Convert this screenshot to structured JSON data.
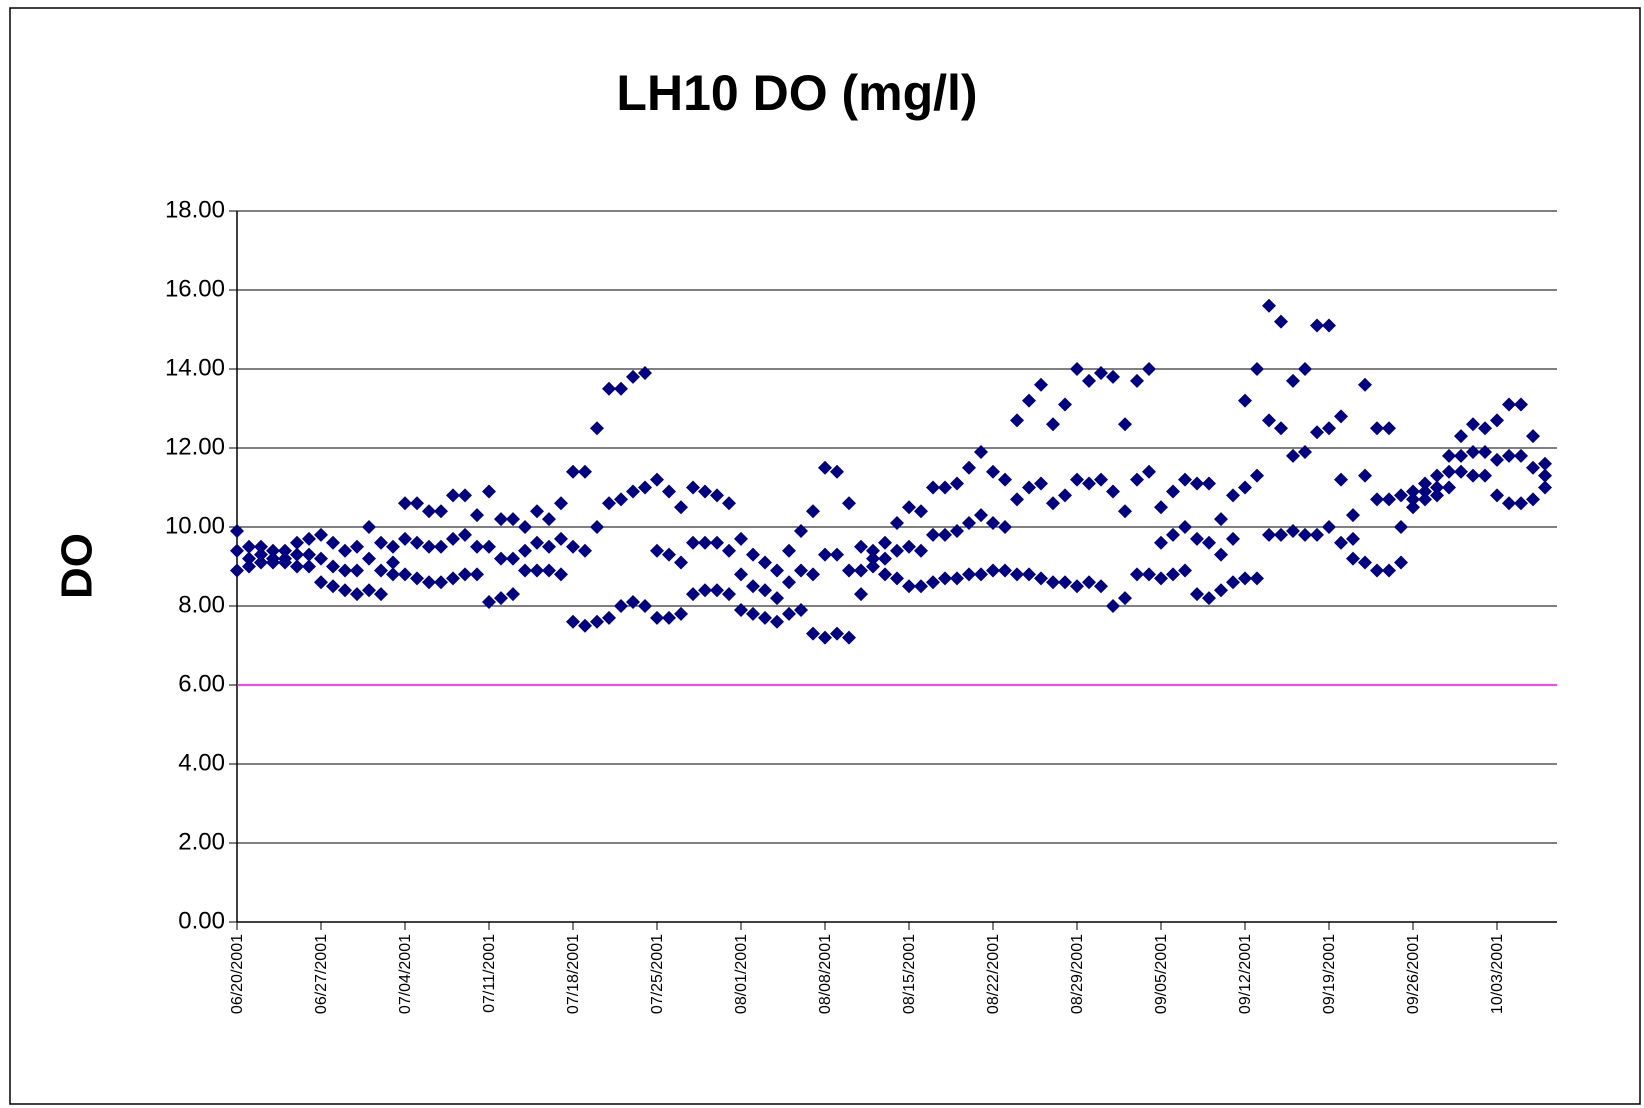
{
  "chart_data": {
    "type": "scatter",
    "title": "LH10 DO (mg/l)",
    "y_label": "DO",
    "x": [
      "06/20/2001",
      "06/21/2001",
      "06/22/2001",
      "06/23/2001",
      "06/24/2001",
      "06/25/2001",
      "06/26/2001",
      "06/27/2001",
      "06/28/2001",
      "06/29/2001",
      "06/30/2001",
      "07/01/2001",
      "07/02/2001",
      "07/03/2001",
      "07/04/2001",
      "07/05/2001",
      "07/06/2001",
      "07/07/2001",
      "07/08/2001",
      "07/09/2001",
      "07/10/2001",
      "07/11/2001",
      "07/12/2001",
      "07/13/2001",
      "07/14/2001",
      "07/15/2001",
      "07/16/2001",
      "07/17/2001",
      "07/18/2001",
      "07/19/2001",
      "07/20/2001",
      "07/21/2001",
      "07/22/2001",
      "07/23/2001",
      "07/24/2001",
      "07/25/2001",
      "07/26/2001",
      "07/27/2001",
      "07/28/2001",
      "07/29/2001",
      "07/30/2001",
      "07/31/2001",
      "08/01/2001",
      "08/02/2001",
      "08/03/2001",
      "08/04/2001",
      "08/05/2001",
      "08/06/2001",
      "08/07/2001",
      "08/08/2001",
      "08/09/2001",
      "08/10/2001",
      "08/11/2001",
      "08/12/2001",
      "08/13/2001",
      "08/14/2001",
      "08/15/2001",
      "08/16/2001",
      "08/17/2001",
      "08/18/2001",
      "08/19/2001",
      "08/20/2001",
      "08/21/2001",
      "08/22/2001",
      "08/23/2001",
      "08/24/2001",
      "08/25/2001",
      "08/26/2001",
      "08/27/2001",
      "08/28/2001",
      "08/29/2001",
      "08/30/2001",
      "08/31/2001",
      "09/01/2001",
      "09/02/2001",
      "09/03/2001",
      "09/04/2001",
      "09/05/2001",
      "09/06/2001",
      "09/07/2001",
      "09/08/2001",
      "09/09/2001",
      "09/10/2001",
      "09/11/2001",
      "09/12/2001",
      "09/13/2001",
      "09/14/2001",
      "09/15/2001",
      "09/16/2001",
      "09/17/2001",
      "09/18/2001",
      "09/19/2001",
      "09/20/2001",
      "09/21/2001",
      "09/22/2001",
      "09/23/2001",
      "09/24/2001",
      "09/25/2001",
      "09/26/2001",
      "09/27/2001",
      "09/28/2001",
      "09/29/2001",
      "09/30/2001",
      "10/01/2001",
      "10/02/2001",
      "10/03/2001",
      "10/04/2001",
      "10/05/2001",
      "10/06/2001",
      "10/07/2001"
    ],
    "series": [
      {
        "color": "#000080",
        "values": [
          8.9,
          9.0,
          9.1,
          9.1,
          9.1,
          9.0,
          9.0,
          8.6,
          8.5,
          8.4,
          8.3,
          8.4,
          8.3,
          8.8,
          8.8,
          8.7,
          8.6,
          8.6,
          8.7,
          8.8,
          8.8,
          8.1,
          8.2,
          8.3,
          8.9,
          8.9,
          8.9,
          8.8,
          7.6,
          7.5,
          7.6,
          7.7,
          8.0,
          8.1,
          8.0,
          7.7,
          7.7,
          7.8,
          8.3,
          8.4,
          8.4,
          8.3,
          7.9,
          7.8,
          7.7,
          7.6,
          7.8,
          7.9,
          7.3,
          7.2,
          7.3,
          7.2,
          8.3,
          9.0,
          8.8,
          8.7,
          8.5,
          8.5,
          8.6,
          8.7,
          8.7,
          8.8,
          8.8,
          8.9,
          8.9,
          8.8,
          8.8,
          8.7,
          8.6,
          8.6,
          8.5,
          8.6,
          8.5,
          8.0,
          8.2,
          8.8,
          8.8,
          8.7,
          8.8,
          8.9,
          8.3,
          8.2,
          8.4,
          8.6,
          8.7,
          8.7,
          9.8,
          9.8,
          9.9,
          9.8,
          9.8,
          10.0,
          9.6,
          9.2,
          9.1,
          8.9,
          8.9,
          9.1,
          10.5,
          10.7,
          10.8,
          11.0,
          11.4,
          11.3,
          11.3,
          10.8,
          10.6,
          10.6,
          10.7,
          11.0
        ]
      },
      {
        "color": "#000080",
        "values": [
          9.4,
          9.2,
          9.3,
          9.2,
          9.2,
          9.3,
          9.3,
          9.2,
          9.0,
          8.9,
          8.9,
          9.2,
          8.9,
          9.1,
          9.7,
          9.6,
          9.5,
          9.5,
          9.7,
          9.8,
          9.5,
          9.5,
          9.2,
          9.2,
          9.4,
          9.6,
          9.5,
          9.7,
          9.5,
          9.4,
          10.0,
          10.6,
          10.7,
          10.9,
          11.0,
          9.4,
          9.3,
          9.1,
          9.6,
          9.6,
          9.6,
          9.4,
          8.8,
          8.5,
          8.4,
          8.2,
          8.6,
          8.9,
          8.8,
          9.3,
          9.3,
          8.9,
          8.9,
          9.2,
          9.2,
          9.4,
          9.5,
          9.4,
          9.8,
          9.8,
          9.9,
          10.1,
          10.3,
          10.1,
          10.0,
          10.7,
          11.0,
          11.1,
          10.6,
          10.8,
          11.2,
          11.1,
          11.2,
          10.9,
          10.4,
          11.2,
          11.4,
          9.6,
          9.8,
          10.0,
          9.7,
          9.6,
          9.3,
          9.7,
          11.0,
          11.3,
          12.7,
          12.5,
          11.8,
          11.9,
          12.4,
          12.5,
          11.2,
          9.7,
          11.3,
          10.7,
          10.7,
          10.0,
          10.7,
          10.9,
          11.0,
          11.4,
          11.8,
          11.9,
          11.9,
          11.7,
          11.8,
          11.8,
          11.5,
          11.3
        ]
      },
      {
        "color": "#000080",
        "values": [
          9.9,
          9.5,
          9.5,
          9.4,
          9.4,
          9.6,
          9.7,
          9.8,
          9.6,
          9.4,
          9.5,
          10.0,
          9.6,
          9.5,
          10.6,
          10.6,
          10.4,
          10.4,
          10.8,
          10.8,
          10.3,
          10.9,
          10.2,
          10.2,
          10.0,
          10.4,
          10.2,
          10.6,
          11.4,
          11.4,
          12.5,
          13.5,
          13.5,
          13.8,
          13.9,
          11.2,
          10.9,
          10.5,
          11.0,
          10.9,
          10.8,
          10.6,
          9.7,
          9.3,
          9.1,
          8.9,
          9.4,
          9.9,
          10.4,
          11.5,
          11.4,
          10.6,
          9.5,
          9.4,
          9.6,
          10.1,
          10.5,
          10.4,
          11.0,
          11.0,
          11.1,
          11.5,
          11.9,
          11.4,
          11.2,
          12.7,
          13.2,
          13.6,
          12.6,
          13.1,
          14.0,
          13.7,
          13.9,
          13.8,
          12.6,
          13.7,
          14.0,
          10.5,
          10.9,
          11.2,
          11.1,
          11.1,
          10.2,
          10.8,
          13.2,
          14.0,
          15.6,
          15.2,
          13.7,
          14.0,
          15.1,
          15.1,
          12.8,
          10.3,
          13.6,
          12.5,
          12.5,
          10.8,
          10.9,
          11.1,
          11.3,
          11.8,
          12.3,
          12.6,
          12.5,
          12.7,
          13.1,
          13.1,
          12.3,
          11.6
        ]
      }
    ],
    "reference_line": {
      "value": 6,
      "color": "#ff00ff"
    },
    "xlim": [
      "06/20/2001",
      "10/08/2001"
    ],
    "xticks": [
      "06/20/2001",
      "06/27/2001",
      "07/04/2001",
      "07/11/2001",
      "07/18/2001",
      "07/25/2001",
      "08/01/2001",
      "08/08/2001",
      "08/15/2001",
      "08/22/2001",
      "08/29/2001",
      "09/05/2001",
      "09/12/2001",
      "09/19/2001",
      "09/26/2001",
      "10/03/2001"
    ],
    "ylim": [
      0,
      18
    ],
    "yticks": [
      {
        "value": 0,
        "label": "0.00"
      },
      {
        "value": 2,
        "label": "2.00"
      },
      {
        "value": 4,
        "label": "4.00"
      },
      {
        "value": 6,
        "label": "6.00"
      },
      {
        "value": 8,
        "label": "8.00"
      },
      {
        "value": 10,
        "label": "10.00"
      },
      {
        "value": 12,
        "label": "12.00"
      },
      {
        "value": 14,
        "label": "14.00"
      },
      {
        "value": 16,
        "label": "16.00"
      },
      {
        "value": 18,
        "label": "18.00"
      }
    ],
    "grid": true
  }
}
